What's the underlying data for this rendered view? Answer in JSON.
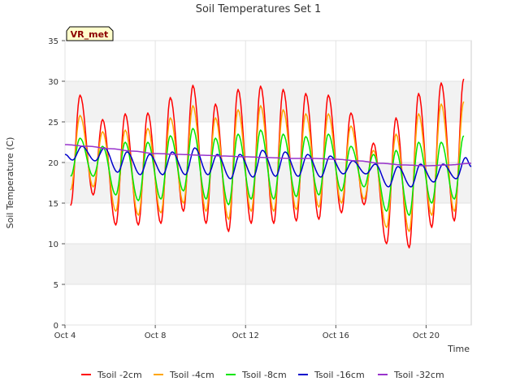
{
  "chart_data": {
    "type": "line",
    "title": "Soil Temperatures Set 1",
    "xlabel": "Time",
    "ylabel": "Soil Temperature (C)",
    "badge": "VR_met",
    "ylim": [
      0,
      35
    ],
    "yticks": [
      0,
      5,
      10,
      15,
      20,
      25,
      30,
      35
    ],
    "xlim": [
      "2023-10-04",
      "2023-10-22"
    ],
    "xticks": [
      {
        "date": "2023-10-04",
        "label": "Oct 4"
      },
      {
        "date": "2023-10-08",
        "label": "Oct 8"
      },
      {
        "date": "2023-10-12",
        "label": "Oct 12"
      },
      {
        "date": "2023-10-16",
        "label": "Oct 16"
      },
      {
        "date": "2023-10-20",
        "label": "Oct 20"
      }
    ],
    "grid": true,
    "legend_position": "bottom",
    "series": [
      {
        "name": "Tsoil -2cm",
        "color": "#ff0000",
        "x": [
          "2023-10-04 06:00",
          "2023-10-04 16:00",
          "2023-10-05 06:00",
          "2023-10-05 16:00",
          "2023-10-06 06:00",
          "2023-10-06 16:00",
          "2023-10-07 06:00",
          "2023-10-07 16:00",
          "2023-10-08 06:00",
          "2023-10-08 16:00",
          "2023-10-09 06:00",
          "2023-10-09 16:00",
          "2023-10-10 06:00",
          "2023-10-10 16:00",
          "2023-10-11 06:00",
          "2023-10-11 16:00",
          "2023-10-12 06:00",
          "2023-10-12 16:00",
          "2023-10-13 06:00",
          "2023-10-13 16:00",
          "2023-10-14 06:00",
          "2023-10-14 16:00",
          "2023-10-15 06:00",
          "2023-10-15 16:00",
          "2023-10-16 06:00",
          "2023-10-16 16:00",
          "2023-10-17 06:00",
          "2023-10-17 16:00",
          "2023-10-18 06:00",
          "2023-10-18 16:00",
          "2023-10-19 06:00",
          "2023-10-19 16:00",
          "2023-10-20 06:00",
          "2023-10-20 16:00",
          "2023-10-21 06:00",
          "2023-10-21 16:00"
        ],
        "y": [
          14.7,
          28.3,
          16.0,
          25.3,
          12.3,
          26.0,
          12.3,
          26.1,
          12.5,
          28.0,
          14.0,
          29.5,
          12.5,
          27.2,
          11.5,
          29.0,
          12.5,
          29.4,
          12.5,
          29.0,
          12.8,
          28.5,
          13.0,
          28.3,
          13.8,
          26.1,
          14.8,
          22.4,
          10.0,
          25.5,
          9.5,
          28.5,
          12.0,
          29.8,
          12.8,
          30.3
        ]
      },
      {
        "name": "Tsoil -4cm",
        "color": "#ffa500",
        "x": [
          "2023-10-04 06:00",
          "2023-10-04 16:00",
          "2023-10-05 06:00",
          "2023-10-05 16:00",
          "2023-10-06 06:00",
          "2023-10-06 16:00",
          "2023-10-07 06:00",
          "2023-10-07 16:00",
          "2023-10-08 06:00",
          "2023-10-08 16:00",
          "2023-10-09 06:00",
          "2023-10-09 16:00",
          "2023-10-10 06:00",
          "2023-10-10 16:00",
          "2023-10-11 06:00",
          "2023-10-11 16:00",
          "2023-10-12 06:00",
          "2023-10-12 16:00",
          "2023-10-13 06:00",
          "2023-10-13 16:00",
          "2023-10-14 06:00",
          "2023-10-14 16:00",
          "2023-10-15 06:00",
          "2023-10-15 16:00",
          "2023-10-16 06:00",
          "2023-10-16 16:00",
          "2023-10-17 06:00",
          "2023-10-17 16:00",
          "2023-10-18 06:00",
          "2023-10-18 16:00",
          "2023-10-19 06:00",
          "2023-10-19 16:00",
          "2023-10-20 06:00",
          "2023-10-20 16:00",
          "2023-10-21 06:00",
          "2023-10-21 16:00"
        ],
        "y": [
          16.6,
          25.8,
          17.0,
          23.8,
          14.0,
          24.0,
          13.5,
          24.2,
          13.8,
          25.5,
          15.0,
          27.0,
          14.0,
          25.5,
          13.0,
          26.5,
          14.0,
          27.0,
          14.0,
          26.5,
          14.2,
          26.0,
          14.5,
          26.0,
          15.0,
          24.5,
          15.5,
          21.5,
          12.0,
          23.5,
          11.5,
          26.0,
          13.5,
          27.2,
          14.0,
          27.5
        ]
      },
      {
        "name": "Tsoil -8cm",
        "color": "#00e600",
        "x": [
          "2023-10-04 06:00",
          "2023-10-04 16:00",
          "2023-10-05 06:00",
          "2023-10-05 16:00",
          "2023-10-06 06:00",
          "2023-10-06 16:00",
          "2023-10-07 06:00",
          "2023-10-07 16:00",
          "2023-10-08 06:00",
          "2023-10-08 16:00",
          "2023-10-09 06:00",
          "2023-10-09 16:00",
          "2023-10-10 06:00",
          "2023-10-10 16:00",
          "2023-10-11 06:00",
          "2023-10-11 16:00",
          "2023-10-12 06:00",
          "2023-10-12 16:00",
          "2023-10-13 06:00",
          "2023-10-13 16:00",
          "2023-10-14 06:00",
          "2023-10-14 16:00",
          "2023-10-15 06:00",
          "2023-10-15 16:00",
          "2023-10-16 06:00",
          "2023-10-16 16:00",
          "2023-10-17 06:00",
          "2023-10-17 16:00",
          "2023-10-18 06:00",
          "2023-10-18 16:00",
          "2023-10-19 06:00",
          "2023-10-19 16:00",
          "2023-10-20 06:00",
          "2023-10-20 16:00",
          "2023-10-21 06:00",
          "2023-10-21 16:00"
        ],
        "y": [
          18.3,
          23.0,
          18.3,
          22.0,
          16.0,
          22.5,
          15.3,
          22.5,
          15.5,
          23.3,
          16.5,
          24.2,
          15.5,
          23.0,
          14.8,
          23.5,
          15.5,
          24.0,
          15.5,
          23.5,
          15.8,
          23.2,
          16.0,
          23.5,
          16.5,
          22.0,
          17.0,
          21.0,
          14.0,
          21.5,
          13.5,
          22.5,
          15.0,
          22.5,
          15.5,
          23.3
        ]
      },
      {
        "name": "Tsoil -16cm",
        "color": "#0000cc",
        "x": [
          "2023-10-04 00:00",
          "2023-10-04 08:00",
          "2023-10-04 18:00",
          "2023-10-05 08:00",
          "2023-10-05 18:00",
          "2023-10-06 08:00",
          "2023-10-06 18:00",
          "2023-10-07 08:00",
          "2023-10-07 18:00",
          "2023-10-08 08:00",
          "2023-10-08 18:00",
          "2023-10-09 08:00",
          "2023-10-09 18:00",
          "2023-10-10 08:00",
          "2023-10-10 18:00",
          "2023-10-11 08:00",
          "2023-10-11 18:00",
          "2023-10-12 08:00",
          "2023-10-12 18:00",
          "2023-10-13 08:00",
          "2023-10-13 18:00",
          "2023-10-14 08:00",
          "2023-10-14 18:00",
          "2023-10-15 08:00",
          "2023-10-15 18:00",
          "2023-10-16 08:00",
          "2023-10-16 18:00",
          "2023-10-17 08:00",
          "2023-10-17 18:00",
          "2023-10-18 08:00",
          "2023-10-18 18:00",
          "2023-10-19 08:00",
          "2023-10-19 18:00",
          "2023-10-20 08:00",
          "2023-10-20 18:00",
          "2023-10-21 08:00",
          "2023-10-21 18:00",
          "2023-10-22 00:00"
        ],
        "y": [
          21.0,
          20.3,
          22.0,
          20.2,
          21.8,
          18.8,
          21.3,
          18.5,
          21.0,
          18.5,
          21.3,
          18.5,
          21.8,
          18.5,
          21.0,
          18.0,
          21.0,
          18.2,
          21.5,
          18.3,
          21.3,
          18.3,
          21.0,
          18.2,
          20.8,
          18.6,
          20.2,
          18.6,
          19.8,
          17.0,
          19.5,
          17.0,
          19.8,
          17.6,
          19.8,
          18.0,
          20.6,
          19.5
        ]
      },
      {
        "name": "Tsoil -32cm",
        "color": "#9933cc",
        "x": [
          "2023-10-04 00:00",
          "2023-10-05 00:00",
          "2023-10-06 00:00",
          "2023-10-07 00:00",
          "2023-10-08 00:00",
          "2023-10-09 00:00",
          "2023-10-10 00:00",
          "2023-10-11 00:00",
          "2023-10-12 00:00",
          "2023-10-13 00:00",
          "2023-10-14 00:00",
          "2023-10-15 00:00",
          "2023-10-16 00:00",
          "2023-10-17 00:00",
          "2023-10-18 00:00",
          "2023-10-19 00:00",
          "2023-10-20 00:00",
          "2023-10-21 00:00",
          "2023-10-22 00:00"
        ],
        "y": [
          22.2,
          22.0,
          21.7,
          21.4,
          21.1,
          21.0,
          20.9,
          20.8,
          20.7,
          20.6,
          20.5,
          20.5,
          20.4,
          20.2,
          19.9,
          19.7,
          19.6,
          19.7,
          19.9
        ]
      }
    ]
  }
}
